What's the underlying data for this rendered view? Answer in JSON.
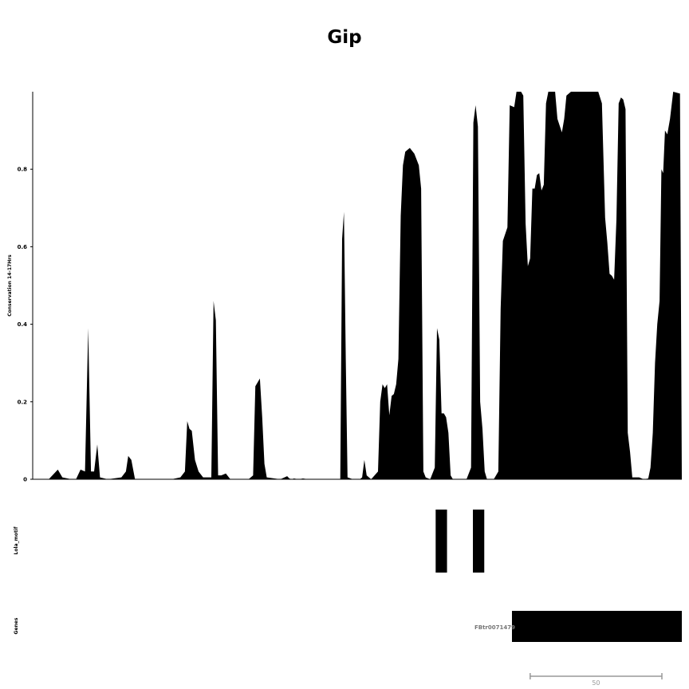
{
  "chart_data": {
    "type": "area",
    "title": "Gip",
    "tracks": [
      {
        "name": "Conservation 14-17Hrs",
        "type": "area",
        "ylim": [
          0,
          1
        ],
        "y_ticks": [
          {
            "value": 0,
            "label": "0"
          },
          {
            "value": 0.2,
            "label": "0.2"
          },
          {
            "value": 0.4,
            "label": "0.4"
          },
          {
            "value": 0.6,
            "label": "0.6"
          },
          {
            "value": 0.8,
            "label": "0.8"
          }
        ],
        "color": "#000000",
        "points": [
          [
            0,
            0
          ],
          [
            3,
            0
          ],
          [
            5,
            0.025
          ],
          [
            6,
            0.005
          ],
          [
            8,
            0
          ],
          [
            9,
            0
          ],
          [
            10,
            0.025
          ],
          [
            11,
            0.02
          ],
          [
            11.7,
            0.39
          ],
          [
            12.3,
            0.02
          ],
          [
            13,
            0.02
          ],
          [
            13.7,
            0.09
          ],
          [
            14.3,
            0.005
          ],
          [
            16,
            0
          ],
          [
            19,
            0.005
          ],
          [
            20,
            0.02
          ],
          [
            20.5,
            0.06
          ],
          [
            21.2,
            0.05
          ],
          [
            22,
            0
          ],
          [
            30,
            0
          ],
          [
            32,
            0.005
          ],
          [
            33,
            0.02
          ],
          [
            33.5,
            0.15
          ],
          [
            34,
            0.13
          ],
          [
            34.5,
            0.125
          ],
          [
            35.2,
            0.05
          ],
          [
            36,
            0.02
          ],
          [
            37,
            0.005
          ],
          [
            38,
            0.005
          ],
          [
            38.8,
            0.005
          ],
          [
            39.3,
            0.46
          ],
          [
            39.8,
            0.41
          ],
          [
            40.3,
            0.01
          ],
          [
            41,
            0.01
          ],
          [
            42,
            0.015
          ],
          [
            43,
            0
          ],
          [
            47,
            0
          ],
          [
            48,
            0.01
          ],
          [
            48.5,
            0.24
          ],
          [
            49.5,
            0.26
          ],
          [
            50,
            0.16
          ],
          [
            50.5,
            0.04
          ],
          [
            51,
            0.005
          ],
          [
            54,
            0
          ],
          [
            55.5,
            0.008
          ],
          [
            56,
            0.002
          ],
          [
            56.5,
            0
          ],
          [
            57,
            0.002
          ],
          [
            58,
            0
          ],
          [
            59,
            0.002
          ],
          [
            60,
            0
          ],
          [
            64,
            0
          ],
          [
            66,
            0
          ],
          [
            67.2,
            0
          ],
          [
            67.6,
            0.62
          ],
          [
            68,
            0.69
          ],
          [
            68.4,
            0.31
          ],
          [
            68.8,
            0.005
          ],
          [
            70,
            0
          ],
          [
            71.5,
            0
          ],
          [
            72,
            0.005
          ],
          [
            72.5,
            0.05
          ],
          [
            73,
            0.01
          ],
          [
            74,
            0
          ],
          [
            75.5,
            0.02
          ],
          [
            76,
            0.2
          ],
          [
            76.5,
            0.245
          ],
          [
            77,
            0.235
          ],
          [
            77.5,
            0.245
          ],
          [
            78,
            0.165
          ],
          [
            78.5,
            0.215
          ],
          [
            79,
            0.22
          ],
          [
            79.5,
            0.245
          ],
          [
            80,
            0.31
          ],
          [
            80.5,
            0.68
          ],
          [
            81,
            0.81
          ],
          [
            81.5,
            0.845
          ],
          [
            82.5,
            0.855
          ],
          [
            83.5,
            0.84
          ],
          [
            84.5,
            0.81
          ],
          [
            85,
            0.75
          ],
          [
            85.5,
            0.02
          ],
          [
            86,
            0.005
          ],
          [
            87,
            0
          ],
          [
            88,
            0.03
          ],
          [
            88.5,
            0.39
          ],
          [
            89,
            0.36
          ],
          [
            89.5,
            0.17
          ],
          [
            90,
            0.17
          ],
          [
            90.5,
            0.16
          ],
          [
            91,
            0.12
          ],
          [
            91.5,
            0.01
          ],
          [
            92,
            0
          ],
          [
            95,
            0
          ],
          [
            96,
            0.03
          ],
          [
            96.5,
            0.92
          ],
          [
            97,
            0.965
          ],
          [
            97.5,
            0.91
          ],
          [
            98,
            0.2
          ],
          [
            98.5,
            0.13
          ],
          [
            99,
            0.02
          ],
          [
            99.5,
            0
          ],
          [
            101,
            0
          ],
          [
            102,
            0.02
          ],
          [
            102.5,
            0.44
          ],
          [
            103,
            0.615
          ],
          [
            104,
            0.65
          ],
          [
            104.5,
            0.965
          ],
          [
            105.5,
            0.96
          ],
          [
            106,
            1
          ],
          [
            107,
            1
          ],
          [
            107.5,
            0.99
          ],
          [
            108,
            0.66
          ],
          [
            108.5,
            0.55
          ],
          [
            109,
            0.57
          ],
          [
            109.5,
            0.75
          ],
          [
            110,
            0.75
          ],
          [
            110.5,
            0.785
          ],
          [
            111,
            0.79
          ],
          [
            111.5,
            0.745
          ],
          [
            112,
            0.76
          ],
          [
            112.5,
            0.97
          ],
          [
            113,
            1
          ],
          [
            114.5,
            1
          ],
          [
            115,
            0.93
          ],
          [
            116,
            0.895
          ],
          [
            116.5,
            0.93
          ],
          [
            117,
            0.99
          ],
          [
            118,
            1
          ],
          [
            124,
            1
          ],
          [
            124.8,
            0.97
          ],
          [
            125.5,
            0.675
          ],
          [
            126,
            0.61
          ],
          [
            126.5,
            0.53
          ],
          [
            127,
            0.525
          ],
          [
            127.5,
            0.515
          ],
          [
            128,
            0.67
          ],
          [
            128.5,
            0.97
          ],
          [
            129,
            0.985
          ],
          [
            129.5,
            0.98
          ],
          [
            130,
            0.955
          ],
          [
            130.5,
            0.12
          ],
          [
            131,
            0.07
          ],
          [
            131.5,
            0.005
          ],
          [
            133,
            0.005
          ],
          [
            134,
            0
          ],
          [
            135,
            0.002
          ],
          [
            135.5,
            0.03
          ],
          [
            136,
            0.12
          ],
          [
            136.5,
            0.3
          ],
          [
            137,
            0.4
          ],
          [
            137.5,
            0.46
          ],
          [
            137.9,
            0.8
          ],
          [
            138.3,
            0.79
          ],
          [
            138.7,
            0.9
          ],
          [
            139.2,
            0.89
          ],
          [
            139.8,
            0.93
          ],
          [
            140.5,
            1
          ],
          [
            142,
            0.995
          ],
          [
            142.4,
            0
          ]
        ]
      },
      {
        "name": "Lola_motif",
        "type": "features",
        "features": [
          {
            "start": 88.2,
            "end": 90.7
          },
          {
            "start": 96.4,
            "end": 98.9
          }
        ]
      },
      {
        "name": "Genes",
        "type": "features",
        "features": [
          {
            "start": 105,
            "end": 142.4,
            "label": "FBtr0071479"
          }
        ]
      }
    ],
    "x_range": [
      0,
      142.4
    ],
    "scale_bar": {
      "length": 29,
      "label": "50"
    }
  }
}
